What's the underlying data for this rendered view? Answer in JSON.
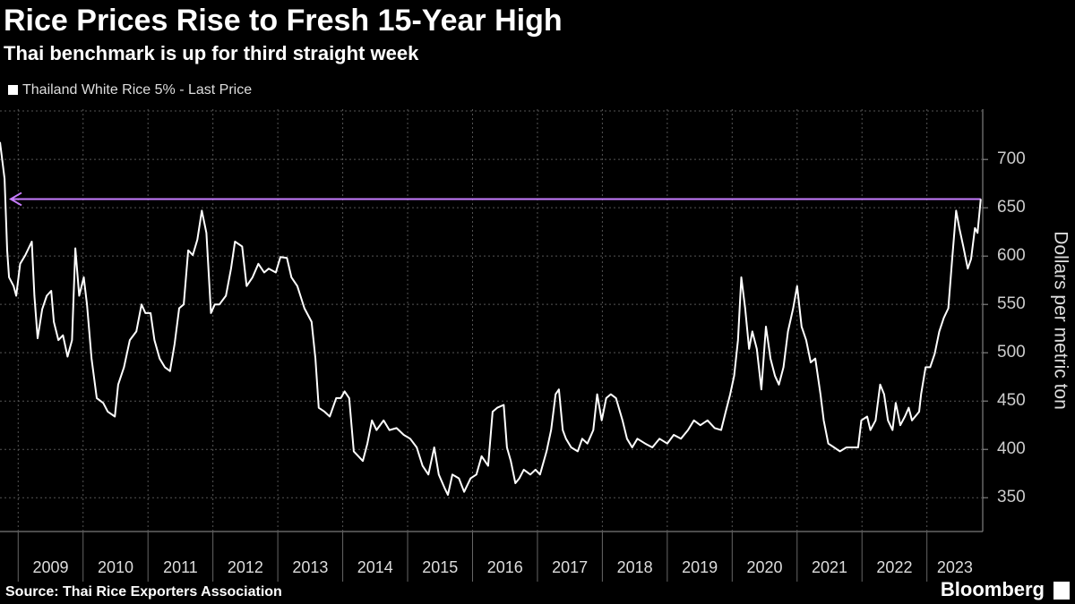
{
  "chart_data": {
    "type": "line",
    "title": "Rice Prices Rise to Fresh 15-Year High",
    "subtitle": "Thai benchmark is up for third straight week",
    "y_label": "Dollars per metric ton",
    "source": "Source: Thai Rice Exporters Association",
    "brand": "Bloomberg",
    "grid": true,
    "reference_line": {
      "value": 659,
      "color": "#c77dff"
    },
    "xlim": [
      2008.72,
      2023.86
    ],
    "xticks": [
      2009,
      2010,
      2011,
      2012,
      2013,
      2014,
      2015,
      2016,
      2017,
      2018,
      2019,
      2020,
      2021,
      2022,
      2023
    ],
    "ylim": [
      315,
      752
    ],
    "yticks": [
      350,
      400,
      450,
      500,
      550,
      600,
      650,
      700
    ],
    "series": [
      {
        "name": "Thailand White Rice 5% - Last Price",
        "color": "#ffffff",
        "x": [
          2008.72,
          2008.79,
          2008.83,
          2008.86,
          2008.93,
          2008.97,
          2009.03,
          2009.11,
          2009.21,
          2009.25,
          2009.3,
          2009.37,
          2009.44,
          2009.51,
          2009.55,
          2009.62,
          2009.69,
          2009.76,
          2009.83,
          2009.88,
          2009.94,
          2010.01,
          2010.06,
          2010.13,
          2010.21,
          2010.31,
          2010.38,
          2010.49,
          2010.54,
          2010.63,
          2010.72,
          2010.82,
          2010.9,
          2010.96,
          2011.04,
          2011.1,
          2011.18,
          2011.26,
          2011.34,
          2011.41,
          2011.48,
          2011.55,
          2011.62,
          2011.69,
          2011.76,
          2011.83,
          2011.9,
          2011.97,
          2012.03,
          2012.1,
          2012.2,
          2012.28,
          2012.34,
          2012.45,
          2012.52,
          2012.61,
          2012.7,
          2012.79,
          2012.86,
          2012.97,
          2013.04,
          2013.14,
          2013.21,
          2013.3,
          2013.41,
          2013.52,
          2013.58,
          2013.63,
          2013.72,
          2013.8,
          2013.9,
          2013.97,
          2014.03,
          2014.1,
          2014.17,
          2014.24,
          2014.31,
          2014.38,
          2014.45,
          2014.52,
          2014.63,
          2014.72,
          2014.83,
          2014.94,
          2015.04,
          2015.14,
          2015.23,
          2015.32,
          2015.41,
          2015.48,
          2015.57,
          2015.62,
          2015.69,
          2015.79,
          2015.87,
          2015.97,
          2016.06,
          2016.14,
          2016.24,
          2016.31,
          2016.38,
          2016.48,
          2016.53,
          2016.59,
          2016.66,
          2016.72,
          2016.79,
          2016.89,
          2016.97,
          2017.04,
          2017.14,
          2017.21,
          2017.28,
          2017.33,
          2017.39,
          2017.44,
          2017.52,
          2017.62,
          2017.69,
          2017.77,
          2017.86,
          2017.92,
          2017.99,
          2018.06,
          2018.13,
          2018.21,
          2018.31,
          2018.38,
          2018.46,
          2018.54,
          2018.66,
          2018.77,
          2018.88,
          2019.0,
          2019.1,
          2019.21,
          2019.32,
          2019.41,
          2019.51,
          2019.62,
          2019.73,
          2019.83,
          2019.9,
          2019.97,
          2020.03,
          2020.09,
          2020.14,
          2020.2,
          2020.26,
          2020.31,
          2020.38,
          2020.45,
          2020.52,
          2020.59,
          2020.66,
          2020.72,
          2020.79,
          2020.86,
          2020.94,
          2021.0,
          2021.07,
          2021.14,
          2021.21,
          2021.28,
          2021.36,
          2021.41,
          2021.48,
          2021.57,
          2021.66,
          2021.76,
          2021.86,
          2021.94,
          2021.99,
          2022.08,
          2022.13,
          2022.21,
          2022.28,
          2022.34,
          2022.4,
          2022.47,
          2022.52,
          2022.59,
          2022.66,
          2022.72,
          2022.77,
          2022.82,
          2022.88,
          2022.91,
          2022.98,
          2023.05,
          2023.12,
          2023.19,
          2023.26,
          2023.33,
          2023.39,
          2023.45,
          2023.5,
          2023.56,
          2023.63,
          2023.68,
          2023.74,
          2023.78,
          2023.83
        ],
        "values": [
          718,
          680,
          606,
          578,
          569,
          559,
          592,
          601,
          615,
          559,
          515,
          545,
          559,
          564,
          532,
          513,
          518,
          496,
          513,
          608,
          559,
          578,
          550,
          494,
          453,
          448,
          439,
          434,
          467,
          485,
          513,
          522,
          550,
          541,
          541,
          513,
          494,
          485,
          481,
          509,
          546,
          550,
          606,
          601,
          617,
          647,
          624,
          541,
          550,
          550,
          559,
          587,
          615,
          610,
          569,
          578,
          592,
          583,
          587,
          583,
          599,
          598,
          578,
          569,
          546,
          532,
          494,
          443,
          439,
          434,
          453,
          453,
          460,
          453,
          398,
          393,
          388,
          406,
          430,
          420,
          430,
          420,
          422,
          415,
          411,
          402,
          383,
          374,
          402,
          374,
          360,
          353,
          374,
          370,
          356,
          370,
          374,
          393,
          383,
          439,
          443,
          446,
          402,
          388,
          365,
          370,
          379,
          374,
          379,
          374,
          398,
          420,
          457,
          462,
          420,
          411,
          402,
          398,
          411,
          406,
          420,
          457,
          430,
          453,
          457,
          453,
          430,
          411,
          402,
          411,
          406,
          402,
          411,
          406,
          415,
          411,
          420,
          430,
          425,
          430,
          422,
          420,
          439,
          457,
          476,
          513,
          578,
          546,
          504,
          522,
          504,
          462,
          527,
          494,
          476,
          467,
          485,
          522,
          546,
          569,
          527,
          513,
          490,
          494,
          457,
          430,
          406,
          402,
          398,
          402,
          402,
          402,
          430,
          434,
          420,
          430,
          467,
          457,
          430,
          420,
          448,
          425,
          434,
          443,
          430,
          434,
          439,
          457,
          485,
          485,
          499,
          522,
          536,
          546,
          597,
          647,
          629,
          610,
          587,
          597,
          629,
          624,
          659
        ]
      }
    ]
  }
}
